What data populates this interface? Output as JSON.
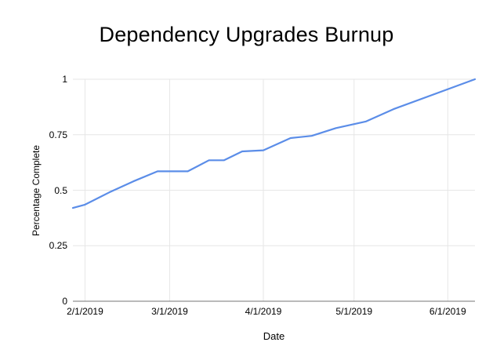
{
  "title": "Dependency Upgrades Burnup",
  "chart_data": {
    "type": "line",
    "title": "Dependency Upgrades Burnup",
    "xlabel": "Date",
    "ylabel": "Percentage Complete",
    "ylim": [
      0,
      1
    ],
    "grid": true,
    "legend_position": "none",
    "x_domain": [
      "2019-01-28",
      "2019-06-10"
    ],
    "x_ticks": [
      {
        "date": "2019-02-01",
        "label": "2/1/2019"
      },
      {
        "date": "2019-03-01",
        "label": "3/1/2019"
      },
      {
        "date": "2019-04-01",
        "label": "4/1/2019"
      },
      {
        "date": "2019-05-01",
        "label": "5/1/2019"
      },
      {
        "date": "2019-06-01",
        "label": "6/1/2019"
      }
    ],
    "y_ticks": [
      {
        "value": 0,
        "label": "0"
      },
      {
        "value": 0.25,
        "label": "0.25"
      },
      {
        "value": 0.5,
        "label": "0.5"
      },
      {
        "value": 0.75,
        "label": "0.75"
      },
      {
        "value": 1,
        "label": "1"
      }
    ],
    "colors": {
      "line": "#5b8de8",
      "grid": "#e6e6e6",
      "axis": "#757575",
      "text": "#000000",
      "background": "#ffffff"
    },
    "series": [
      {
        "name": "Percentage Complete",
        "color": "#5b8de8",
        "points": [
          {
            "date": "2019-01-28",
            "value": 0.42
          },
          {
            "date": "2019-02-01",
            "value": 0.435
          },
          {
            "date": "2019-02-09",
            "value": 0.49
          },
          {
            "date": "2019-02-17",
            "value": 0.54
          },
          {
            "date": "2019-02-25",
            "value": 0.585
          },
          {
            "date": "2019-03-07",
            "value": 0.585
          },
          {
            "date": "2019-03-14",
            "value": 0.635
          },
          {
            "date": "2019-03-19",
            "value": 0.635
          },
          {
            "date": "2019-03-25",
            "value": 0.675
          },
          {
            "date": "2019-04-01",
            "value": 0.68
          },
          {
            "date": "2019-04-10",
            "value": 0.735
          },
          {
            "date": "2019-04-17",
            "value": 0.745
          },
          {
            "date": "2019-04-25",
            "value": 0.78
          },
          {
            "date": "2019-05-05",
            "value": 0.81
          },
          {
            "date": "2019-05-14",
            "value": 0.865
          },
          {
            "date": "2019-06-10",
            "value": 1.0
          }
        ]
      }
    ]
  }
}
